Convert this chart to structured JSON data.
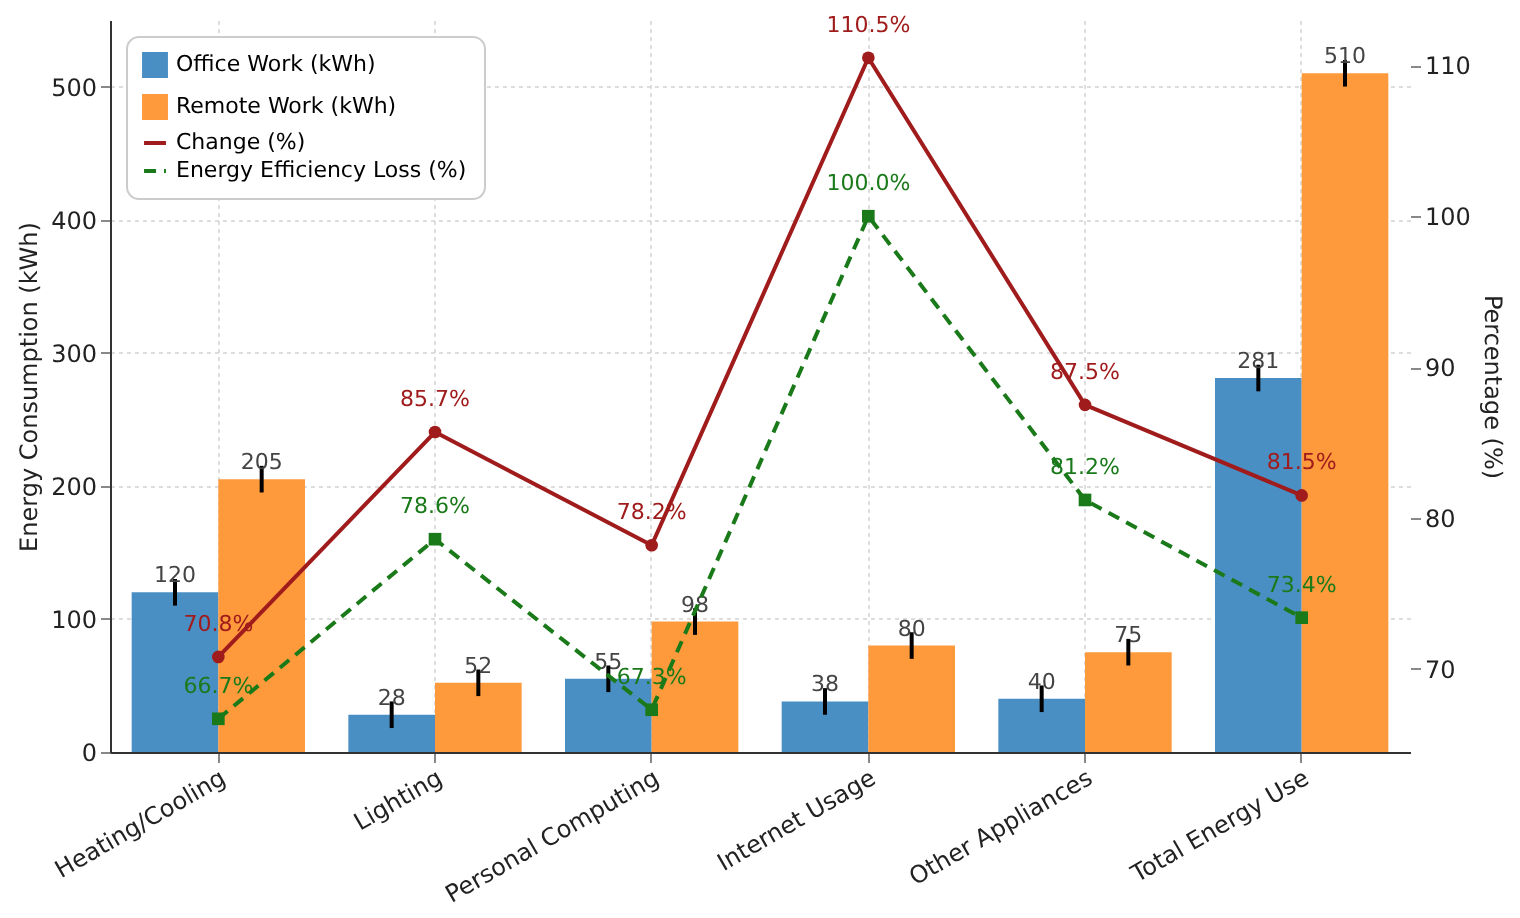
{
  "chart_data": {
    "type": "bar",
    "ylabel": "Energy Consumption (kWh)",
    "y2label": "Percentage (%)",
    "categories": [
      "Heating/Cooling",
      "Lighting",
      "Personal Computing",
      "Internet Usage",
      "Other Appliances",
      "Total Energy Use"
    ],
    "series": [
      {
        "name": "Office Work (kWh)",
        "color": "#4a8fc4",
        "values": [
          120,
          28,
          55,
          38,
          40,
          281
        ],
        "errors": [
          10,
          10,
          10,
          10,
          10,
          10
        ]
      },
      {
        "name": "Remote Work (kWh)",
        "color": "#ff9a3c",
        "values": [
          205,
          52,
          98,
          80,
          75,
          510
        ],
        "errors": [
          10,
          10,
          10,
          10,
          10,
          10
        ]
      },
      {
        "name": "Change (%)",
        "type": "line",
        "axis": "y2",
        "color": "#a01c1c",
        "marker": "circle",
        "line_style": "solid",
        "values": [
          70.8,
          85.7,
          78.2,
          110.5,
          87.5,
          81.5
        ],
        "value_labels": [
          "70.8%",
          "85.7%",
          "78.2%",
          "110.5%",
          "87.5%",
          "81.5%"
        ]
      },
      {
        "name": "Energy Efficiency Loss (%)",
        "type": "line",
        "axis": "y2",
        "color": "#1a7a1a",
        "marker": "square",
        "line_style": "dashed",
        "values": [
          66.7,
          78.6,
          67.3,
          100.0,
          81.2,
          73.4
        ],
        "value_labels": [
          "66.7%",
          "78.6%",
          "67.3%",
          "100.0%",
          "81.2%",
          "73.4%"
        ]
      }
    ],
    "ylim": [
      0,
      550
    ],
    "yticks": [
      0,
      100,
      200,
      300,
      400,
      500
    ],
    "y2lim": [
      64.5,
      113
    ],
    "y2ticks": [
      70,
      80,
      90,
      100,
      110
    ],
    "data_labels": true,
    "grid": true,
    "legend": "top left"
  }
}
